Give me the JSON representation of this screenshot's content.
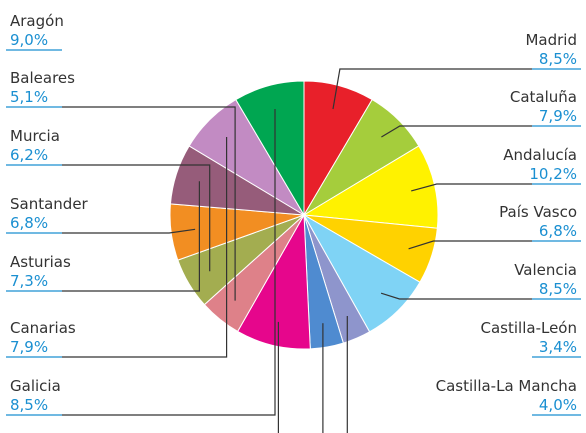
{
  "chart_data": {
    "type": "pie",
    "title": "",
    "start_angle_deg": 0,
    "direction": "clockwise",
    "value_color": "#1a8fd1",
    "slices": [
      {
        "label": "Madrid",
        "value": 8.5,
        "value_text": "8,5%",
        "color": "#e8202a",
        "side": "right"
      },
      {
        "label": "Cataluña",
        "value": 7.9,
        "value_text": "7,9%",
        "color": "#a5cd3c",
        "side": "right"
      },
      {
        "label": "Andalucía",
        "value": 10.2,
        "value_text": "10,2%",
        "color": "#fff200",
        "side": "right"
      },
      {
        "label": "País Vasco",
        "value": 6.8,
        "value_text": "6,8%",
        "color": "#ffd200",
        "side": "right"
      },
      {
        "label": "Valencia",
        "value": 8.5,
        "value_text": "8,5%",
        "color": "#7fd3f5",
        "side": "right"
      },
      {
        "label": "Castilla-León",
        "value": 3.4,
        "value_text": "3,4%",
        "color": "#8e95cc",
        "side": "right"
      },
      {
        "label": "Castilla-La Mancha",
        "value": 4.0,
        "value_text": "4,0%",
        "color": "#4f8bd0",
        "side": "right"
      },
      {
        "label": "Aragón",
        "value": 9.0,
        "value_text": "9,0%",
        "color": "#e6068c",
        "side": "left"
      },
      {
        "label": "Baleares",
        "value": 5.1,
        "value_text": "5,1%",
        "color": "#de8189",
        "side": "left"
      },
      {
        "label": "Murcia",
        "value": 6.2,
        "value_text": "6,2%",
        "color": "#a3ad50",
        "side": "left"
      },
      {
        "label": "Santander",
        "value": 6.8,
        "value_text": "6,8%",
        "color": "#f28e22",
        "side": "left"
      },
      {
        "label": "Asturias",
        "value": 7.3,
        "value_text": "7,3%",
        "color": "#965c7a",
        "side": "left"
      },
      {
        "label": "Canarias",
        "value": 7.9,
        "value_text": "7,9%",
        "color": "#c28bc3",
        "side": "left"
      },
      {
        "label": "Galicia",
        "value": 8.5,
        "value_text": "8,5%",
        "color": "#00a651",
        "side": "left"
      }
    ]
  }
}
